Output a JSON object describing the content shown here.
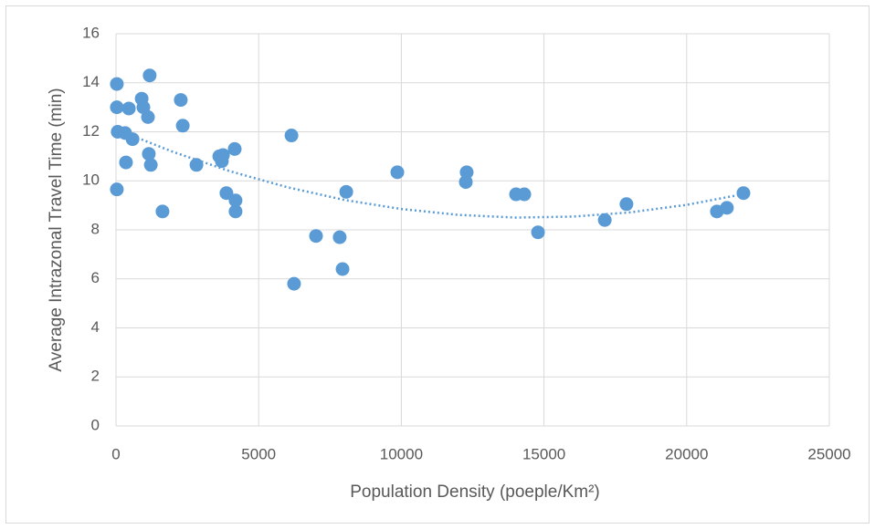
{
  "chart_data": {
    "type": "scatter",
    "x_label": "Population Density (poeple/Km²)",
    "y_label": "Average Intrazonal Travel Time (min)",
    "xlim": [
      0,
      25000
    ],
    "xticks": [
      0,
      5000,
      10000,
      15000,
      20000,
      25000
    ],
    "ylim": [
      0,
      16
    ],
    "yticks": [
      0,
      2,
      4,
      6,
      8,
      10,
      12,
      14,
      16
    ],
    "grid": true,
    "series": [
      {
        "color": "#5b9bd5",
        "x": [
          30,
          30,
          60,
          30,
          320,
          350,
          450,
          580,
          900,
          960,
          1120,
          1180,
          1150,
          1220,
          1630,
          2270,
          2340,
          2820,
          3620,
          3710,
          3750,
          4160,
          3870,
          4190,
          4190,
          6150,
          6240,
          7010,
          7840,
          7940,
          8070,
          9860,
          12290,
          12260,
          14020,
          14310,
          14790,
          17130,
          17890,
          21060,
          21410,
          21990
        ],
        "values": [
          13.95,
          13.0,
          12.0,
          9.65,
          11.95,
          10.75,
          12.95,
          11.7,
          13.35,
          13.0,
          12.6,
          14.3,
          11.1,
          10.65,
          8.75,
          13.3,
          12.25,
          10.65,
          11.0,
          10.8,
          11.05,
          11.3,
          9.5,
          9.2,
          8.75,
          11.85,
          5.8,
          7.75,
          7.7,
          6.4,
          9.55,
          10.35,
          10.35,
          9.95,
          9.45,
          9.45,
          7.9,
          8.4,
          9.05,
          8.75,
          8.9,
          9.5
        ]
      }
    ],
    "trendline": {
      "color": "#5b9bd5",
      "x": [
        0,
        2000,
        4000,
        6000,
        8000,
        10000,
        12000,
        14000,
        16000,
        18000,
        20000,
        22000
      ],
      "values": [
        12.1,
        11.18,
        10.39,
        9.74,
        9.22,
        8.85,
        8.61,
        8.5,
        8.54,
        8.71,
        9.02,
        9.46
      ]
    }
  }
}
